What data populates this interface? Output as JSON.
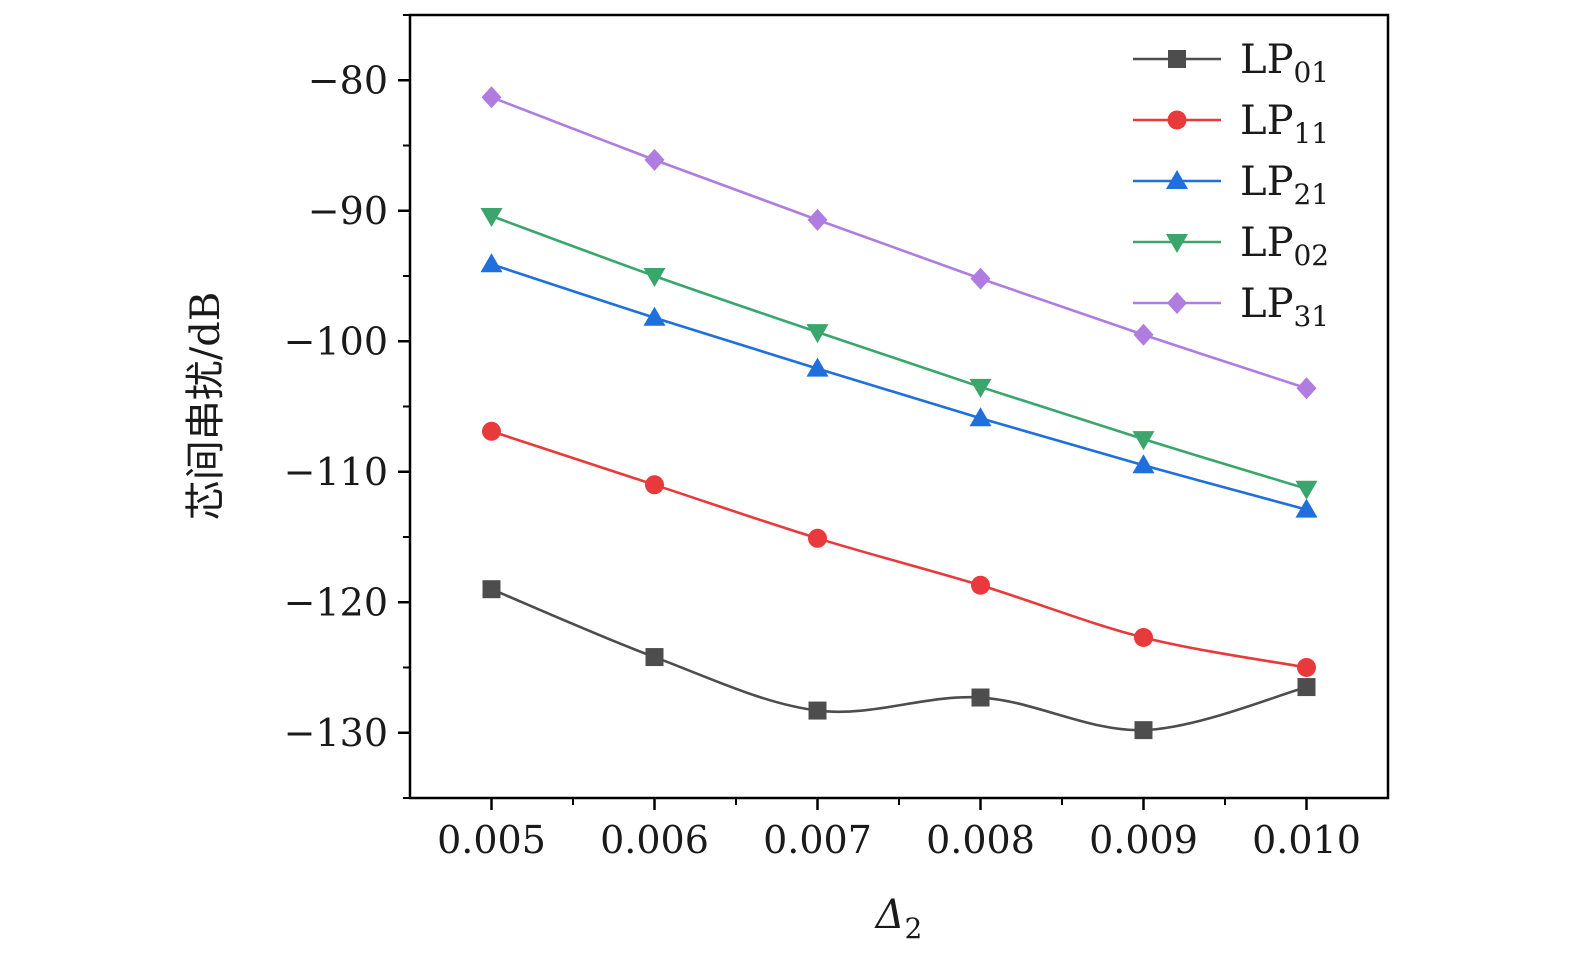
{
  "chart_data": {
    "type": "line",
    "xlabel": "Δ",
    "xlabel_subscript": "2",
    "ylabel": "芯间串扰/dB",
    "x": [
      0.005,
      0.006,
      0.007,
      0.008,
      0.009,
      0.01
    ],
    "x_tick_labels": [
      "0.005",
      "0.006",
      "0.007",
      "0.008",
      "0.009",
      "0.010"
    ],
    "xlim": [
      0.0045,
      0.0105
    ],
    "ylim": [
      -135,
      -75
    ],
    "y_ticks": [
      -80,
      -90,
      -100,
      -110,
      -120,
      -130
    ],
    "y_tick_labels": [
      "−80",
      "−90",
      "−100",
      "−110",
      "−120",
      "−130"
    ],
    "grid": false,
    "legend_position": "top-right",
    "series": [
      {
        "name": "LP",
        "subscript": "01",
        "marker": "square",
        "color": "#4d4d4d",
        "smooth": true,
        "values": [
          -119.0,
          -124.2,
          -128.3,
          -127.3,
          -129.8,
          -126.5
        ]
      },
      {
        "name": "LP",
        "subscript": "11",
        "marker": "circle",
        "color": "#e8393c",
        "smooth": true,
        "values": [
          -106.9,
          -111.0,
          -115.1,
          -118.7,
          -122.7,
          -125.0
        ]
      },
      {
        "name": "LP",
        "subscript": "21",
        "marker": "triangle-up",
        "color": "#1f6fdc",
        "smooth": true,
        "values": [
          -94.1,
          -98.2,
          -102.1,
          -105.9,
          -109.5,
          -112.9
        ]
      },
      {
        "name": "LP",
        "subscript": "02",
        "marker": "triangle-down",
        "color": "#3aa66b",
        "smooth": true,
        "values": [
          -90.4,
          -95.0,
          -99.3,
          -103.5,
          -107.5,
          -111.3
        ]
      },
      {
        "name": "LP",
        "subscript": "31",
        "marker": "diamond",
        "color": "#b07ce0",
        "smooth": true,
        "values": [
          -81.3,
          -86.1,
          -90.7,
          -95.2,
          -99.5,
          -103.6
        ]
      }
    ]
  }
}
